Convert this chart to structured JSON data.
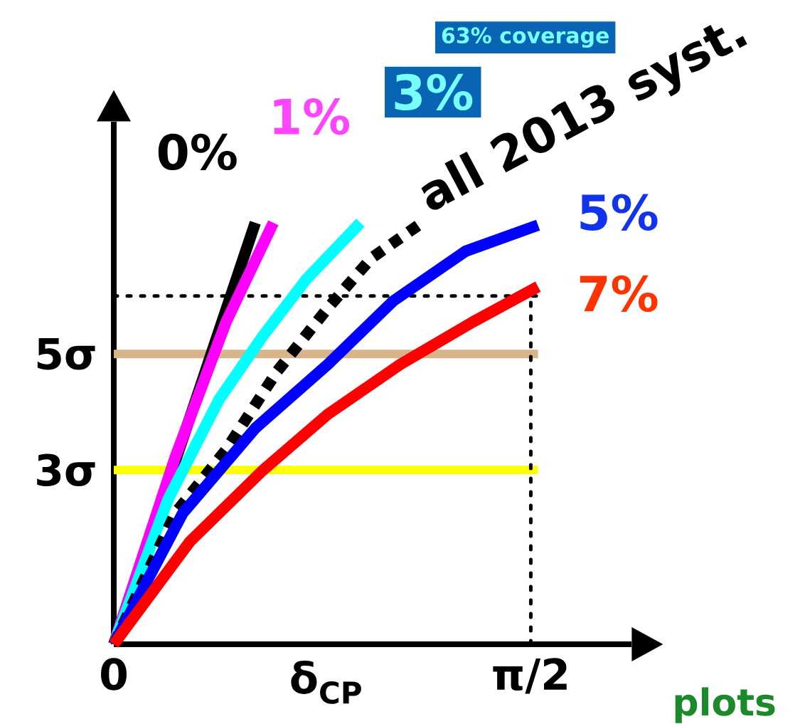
{
  "chart_data": {
    "type": "line",
    "xlabel": "δ$_{CP}$",
    "xlim": [
      0,
      1.95
    ],
    "ylim": [
      0,
      9
    ],
    "xticks": [
      {
        "value": 0,
        "label": "0"
      },
      {
        "value": 1.5708,
        "label": "π/2"
      }
    ],
    "yticks": [
      {
        "value": 3,
        "label": "3σ"
      },
      {
        "value": 5,
        "label": "5σ"
      }
    ],
    "grid": false,
    "marker": "none",
    "series": [
      {
        "name": "0%",
        "color": "#000000",
        "x": [
          0,
          0.533
        ],
        "values": [
          0,
          7.26
        ]
      },
      {
        "name": "1%",
        "color": "#ff00ff",
        "x": [
          0,
          0.232,
          0.423,
          0.601
        ],
        "values": [
          0,
          3.23,
          5.55,
          7.26
        ]
      },
      {
        "name": "3%",
        "color": "#00ffff",
        "x": [
          0,
          0.205,
          0.396,
          0.56,
          0.724,
          0.929
        ],
        "values": [
          0,
          2.5,
          4.21,
          5.3,
          6.28,
          7.26
        ]
      },
      {
        "name": "all 2013 syst.",
        "color": "#000000",
        "line_style": "dotted",
        "x": [
          0,
          0.232,
          0.423,
          0.615,
          0.806,
          0.97,
          1.161
        ],
        "values": [
          0,
          2.26,
          3.35,
          4.7,
          5.79,
          6.65,
          7.26
        ]
      },
      {
        "name": "5%",
        "color": "#0000ff",
        "x": [
          0,
          0.26,
          0.533,
          0.806,
          1.052,
          1.325,
          1.598
        ],
        "values": [
          0,
          2.26,
          3.72,
          4.82,
          5.91,
          6.77,
          7.22
        ]
      },
      {
        "name": "7%",
        "color": "#ff0000",
        "x": [
          0,
          0.287,
          0.56,
          0.806,
          1.079,
          1.352,
          1.598
        ],
        "values": [
          0,
          1.77,
          2.99,
          3.96,
          4.82,
          5.55,
          6.16
        ]
      }
    ],
    "ref_lines": [
      {
        "axis": "y",
        "value": 5,
        "color": "#d8b48a",
        "line_style": "solid"
      },
      {
        "axis": "y",
        "value": 3,
        "color": "#ffff00",
        "line_style": "solid"
      },
      {
        "axis": "y",
        "value": 6,
        "color": "#000000",
        "line_style": "dotted"
      },
      {
        "axis": "x",
        "value": 1.5708,
        "color": "#000000",
        "line_style": "dotted"
      }
    ],
    "annotations": [
      "63% coverage",
      "plots"
    ]
  }
}
